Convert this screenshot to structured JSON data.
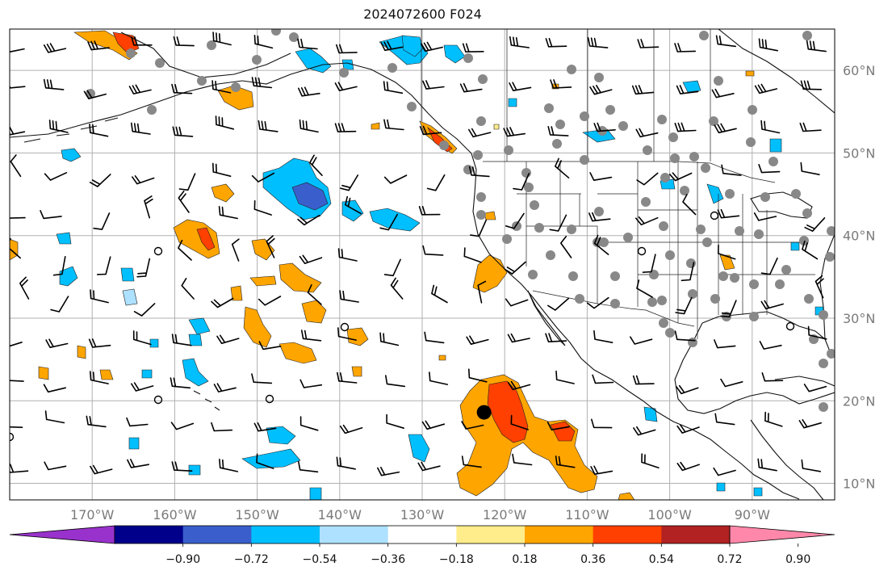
{
  "title": "2024072600 F024",
  "map": {
    "lon_range": [
      -180,
      -80
    ],
    "lat_range": [
      8,
      65
    ],
    "grid_lons": [
      -170,
      -160,
      -150,
      -140,
      -130,
      -120,
      -110,
      -100,
      -90
    ],
    "grid_lats": [
      10,
      20,
      30,
      40,
      50,
      60
    ],
    "lon_labels": [
      "170°W",
      "160°W",
      "150°W",
      "140°W",
      "130°W",
      "120°W",
      "110°W",
      "100°W",
      "90°W"
    ],
    "lat_labels": [
      "10°N",
      "20°N",
      "30°N",
      "40°N",
      "50°N",
      "60°N"
    ],
    "grid": true,
    "storm_center": {
      "lon": -122.5,
      "lat": 18.6
    }
  },
  "colorbar": {
    "ticks": [
      "−0.90",
      "−0.72",
      "−0.54",
      "−0.36",
      "−0.18",
      "0.18",
      "0.36",
      "0.54",
      "0.72",
      "0.90"
    ],
    "colors": [
      "#9932CC",
      "#00008B",
      "#3A5FCD",
      "#00BFFF",
      "#ADE1FF",
      "#FFFFFF",
      "#FFEC8B",
      "#FFA500",
      "#FF4000",
      "#B22222",
      "#FF88AA"
    ],
    "extend": "both"
  }
}
